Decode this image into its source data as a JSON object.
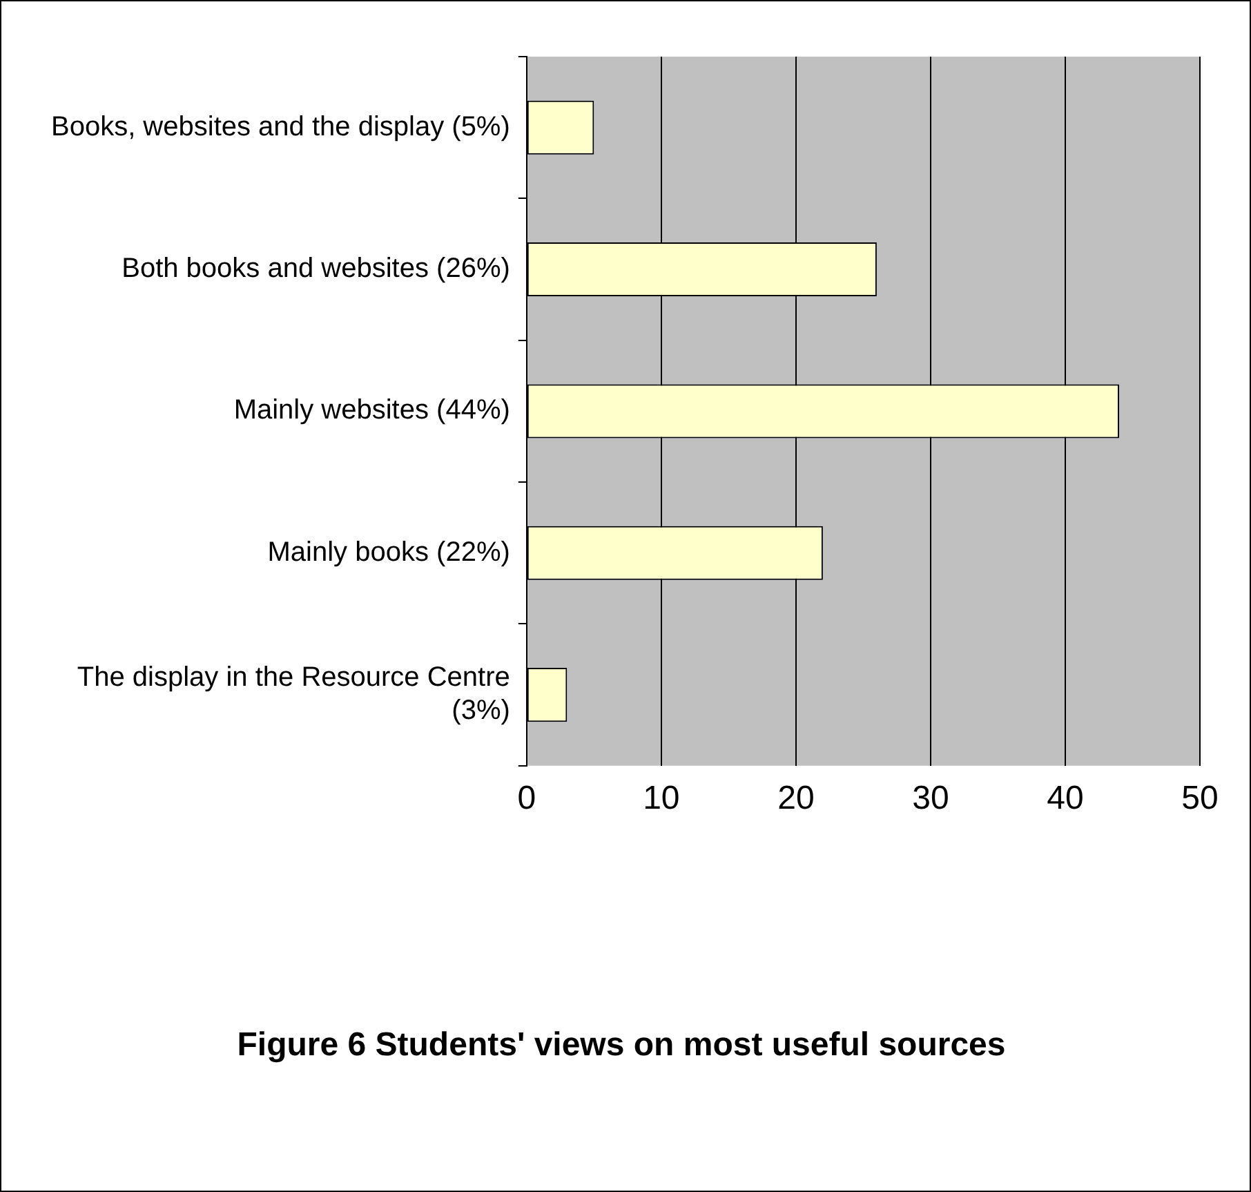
{
  "chart_data": {
    "type": "bar",
    "orientation": "horizontal",
    "title": "Figure 6 Students' views on most useful sources",
    "categories": [
      "Books, websites and the display (5%)",
      "Both books and websites (26%)",
      "Mainly websites (44%)",
      "Mainly books (22%)",
      "The display in the Resource Centre (3%)"
    ],
    "values": [
      5,
      26,
      44,
      22,
      3
    ],
    "color": "#ffffcc",
    "xlim": [
      0,
      50
    ],
    "xticks": [
      0,
      10,
      20,
      30,
      40,
      50
    ],
    "grid": "x",
    "legend": false
  }
}
